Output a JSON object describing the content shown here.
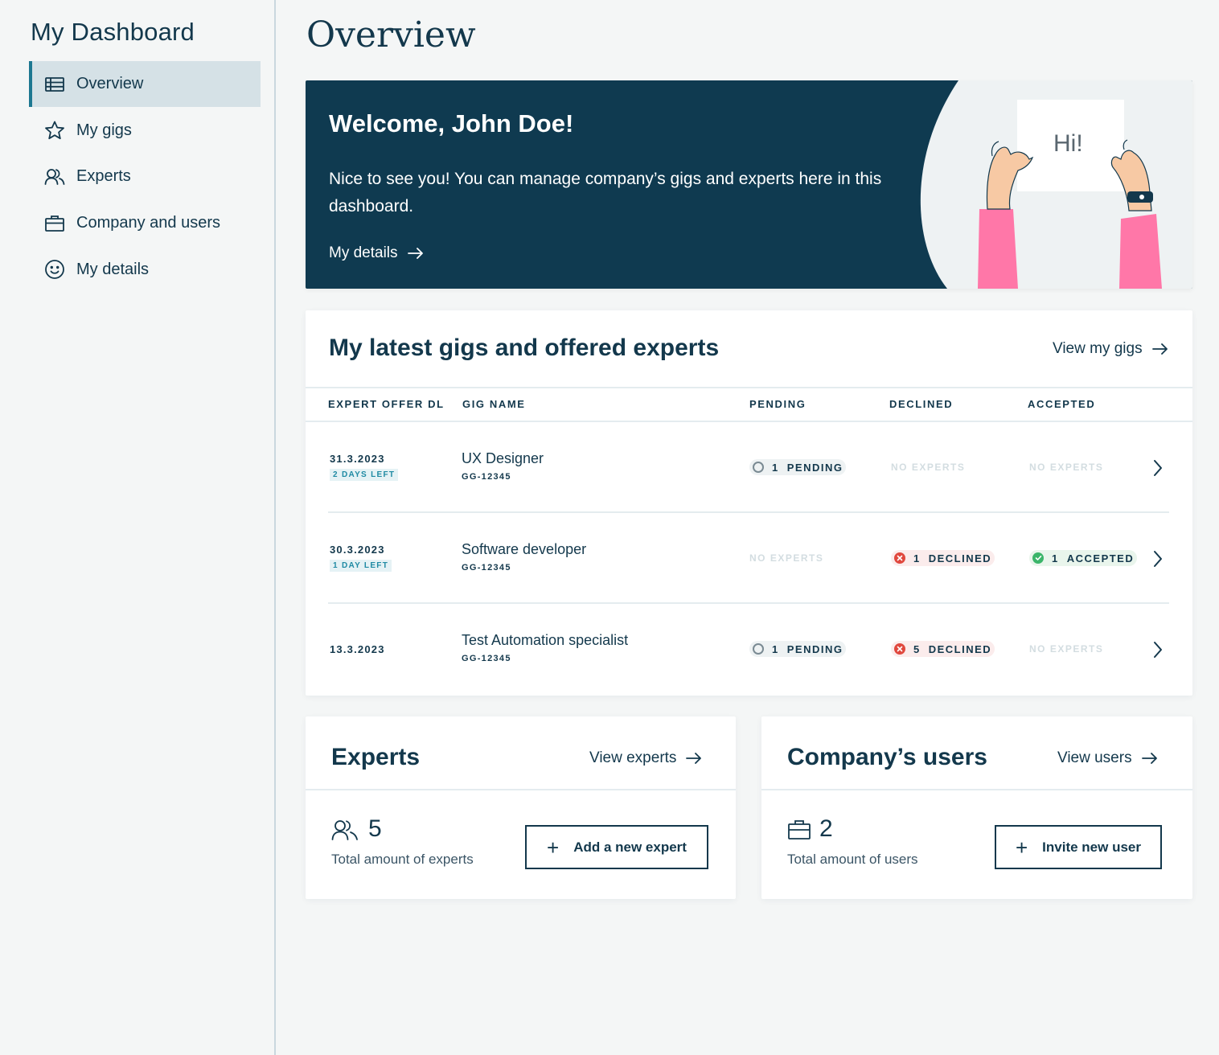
{
  "sidebar": {
    "title": "My Dashboard",
    "items": [
      {
        "label": "Overview",
        "icon": "table-icon",
        "active": true
      },
      {
        "label": "My gigs",
        "icon": "star-icon"
      },
      {
        "label": "Experts",
        "icon": "users-icon"
      },
      {
        "label": "Company and users",
        "icon": "briefcase-icon"
      },
      {
        "label": "My details",
        "icon": "smiley-icon"
      }
    ]
  },
  "page": {
    "title": "Overview"
  },
  "welcome": {
    "title": "Welcome, John Doe!",
    "text": "Nice to see you! You can manage company’s gigs and experts here in this dashboard.",
    "link": "My details",
    "sign_text": "Hi!"
  },
  "gigs": {
    "title": "My latest gigs and offered experts",
    "link": "View my gigs",
    "columns": [
      "EXPERT OFFER DL",
      "GIG NAME",
      "PENDING",
      "DECLINED",
      "ACCEPTED"
    ],
    "rows": [
      {
        "date": "31.3.2023",
        "days_left": "2 DAYS LEFT",
        "name": "UX Designer",
        "id": "GG-12345",
        "pending_num": "1",
        "pending_label": "PENDING",
        "declined": "NO EXPERTS",
        "accepted": "NO EXPERTS"
      },
      {
        "date": "30.3.2023",
        "days_left": "1 DAY LEFT",
        "name": "Software developer",
        "id": "GG-12345",
        "pending": "NO EXPERTS",
        "declined_num": "1",
        "declined_label": "DECLINED",
        "accepted_num": "1",
        "accepted_label": "ACCEPTED"
      },
      {
        "date": "13.3.2023",
        "name": "Test Automation specialist",
        "id": "GG-12345",
        "pending_num": "1",
        "pending_label": "PENDING",
        "declined_num": "5",
        "declined_label": "DECLINED",
        "accepted": "NO EXPERTS"
      }
    ]
  },
  "experts_card": {
    "title": "Experts",
    "link": "View experts",
    "count": "5",
    "label": "Total amount of experts",
    "button": "Add a new expert"
  },
  "users_card": {
    "title": "Company’s users",
    "link": "View users",
    "count": "2",
    "label": "Total amount of users",
    "button": "Invite new user"
  },
  "colors": {
    "navy": "#0f3a50",
    "text": "#13384c",
    "accent": "#1d7891",
    "declined": "#e0483e",
    "accepted": "#3bb56a",
    "sleeve": "#ff77a8"
  }
}
